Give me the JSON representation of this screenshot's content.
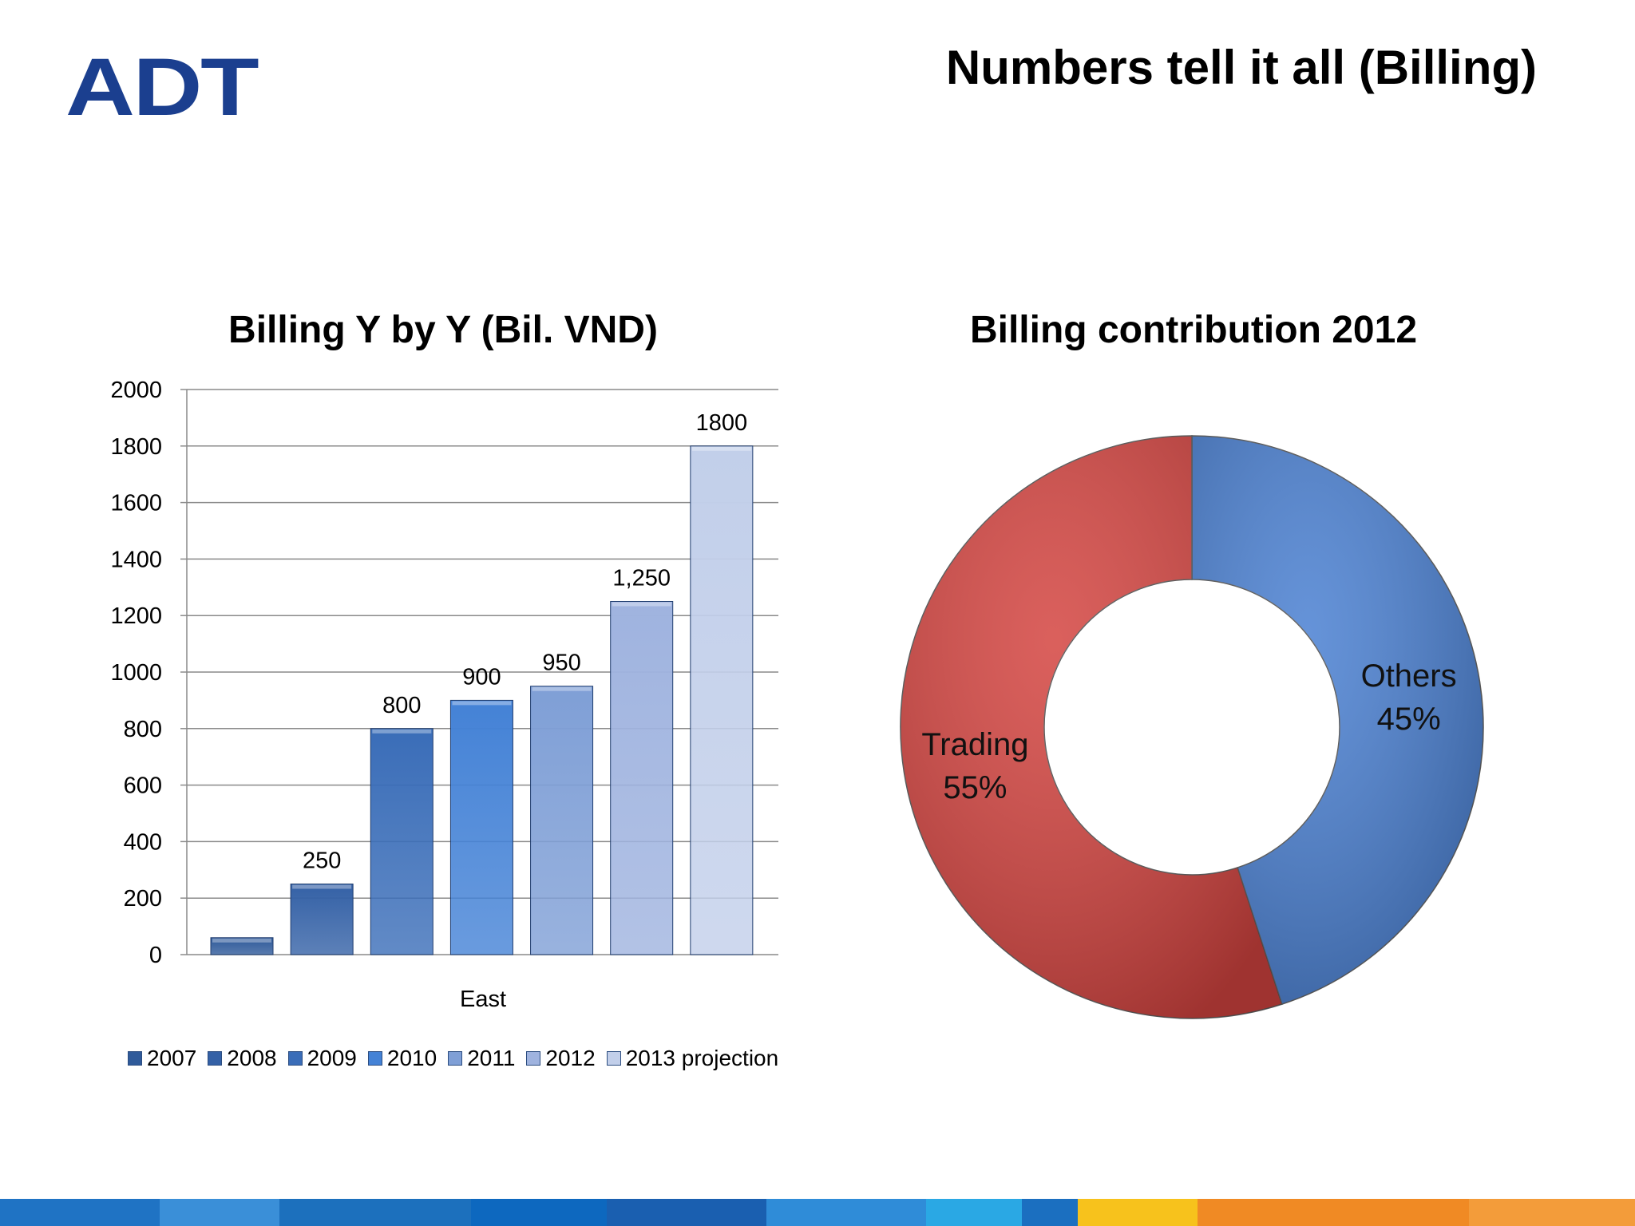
{
  "header": {
    "logo_text": "ADT",
    "title": "Numbers tell it all (Billing)"
  },
  "chart_data": [
    {
      "type": "bar",
      "title": "Billing Y by Y (Bil. VND)",
      "categories": [
        "East"
      ],
      "xlabel": "East",
      "ylim": [
        0,
        2000
      ],
      "yticks": [
        "0",
        "200",
        "400",
        "600",
        "800",
        "1000",
        "1200",
        "1400",
        "1600",
        "1800",
        "2000"
      ],
      "grid": true,
      "legend_position": "bottom",
      "series": [
        {
          "name": "2007",
          "values": [
            60
          ],
          "label": "",
          "color": "#2f5a9a"
        },
        {
          "name": "2008",
          "values": [
            250
          ],
          "label": "250",
          "color": "#3461a6"
        },
        {
          "name": "2009",
          "values": [
            800
          ],
          "label": "800",
          "color": "#3a6db8"
        },
        {
          "name": "2010",
          "values": [
            900
          ],
          "label": "900",
          "color": "#4482d6"
        },
        {
          "name": "2011",
          "values": [
            950
          ],
          "label": "950",
          "color": "#7f9fd6"
        },
        {
          "name": "2012",
          "values": [
            1250
          ],
          "label": "1,250",
          "color": "#9fb3df"
        },
        {
          "name": "2013 projection",
          "values": [
            1800
          ],
          "label": "1800",
          "color": "#c2cfea"
        }
      ]
    },
    {
      "type": "pie",
      "title": "Billing contribution 2012",
      "donut": true,
      "slices": [
        {
          "name": "Others",
          "value": 45,
          "label": "45%",
          "color": "#4a80d2"
        },
        {
          "name": "Trading",
          "value": 55,
          "label": "55%",
          "color": "#d44440"
        }
      ]
    }
  ],
  "footer": {
    "band_colors": [
      "#1f73c4",
      "#3a8fd8",
      "#1c70bd",
      "#0d68bf",
      "#1a5fb0",
      "#2f8cd8",
      "#2aa8e4",
      "#1b6fc0",
      "#f7c21c",
      "#f08a24",
      "#f39c3a"
    ]
  }
}
